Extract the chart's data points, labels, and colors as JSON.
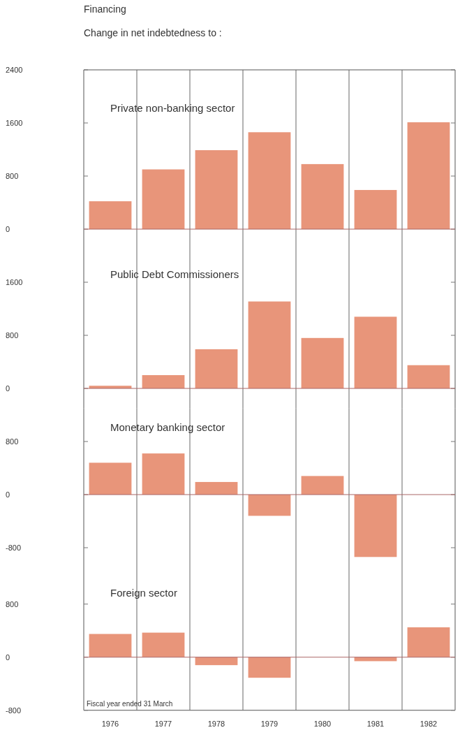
{
  "chart_data": [
    {
      "type": "bar",
      "title": "Financing",
      "subtitle": "Change in net indebtedness to :",
      "annotations": [
        "Private non-banking sector"
      ],
      "categories": [
        "1976",
        "1977",
        "1978",
        "1979",
        "1980",
        "1981",
        "1982"
      ],
      "values": [
        420,
        900,
        1190,
        1460,
        980,
        590,
        1610
      ],
      "color": "#e8957a",
      "ylim": [
        -400,
        2400
      ],
      "yticks": [
        0,
        800,
        1600,
        2400
      ],
      "grid": "x",
      "tick_labels": "y",
      "ref_lines": [
        {
          "axis": "y",
          "value": 0,
          "color": "#aa6666"
        }
      ]
    },
    {
      "type": "bar",
      "annotations": [
        "Public Debt Commissioners"
      ],
      "categories": [
        "1976",
        "1977",
        "1978",
        "1979",
        "1980",
        "1981",
        "1982"
      ],
      "values": [
        40,
        200,
        590,
        1310,
        760,
        1080,
        350
      ],
      "color": "#e8957a",
      "ylim": [
        -300,
        2000
      ],
      "yticks": [
        0,
        800,
        1600
      ],
      "grid": "x",
      "tick_labels": "y",
      "ref_lines": [
        {
          "axis": "y",
          "value": 0,
          "color": "#aa6666"
        }
      ]
    },
    {
      "type": "bar",
      "annotations": [
        "Monetary banking sector"
      ],
      "categories": [
        "1976",
        "1977",
        "1978",
        "1979",
        "1980",
        "1981",
        "1982"
      ],
      "values": [
        480,
        620,
        190,
        -320,
        280,
        -940,
        0
      ],
      "color": "#e8957a",
      "ylim": [
        -1200,
        1300
      ],
      "yticks": [
        -800,
        0,
        800
      ],
      "grid": "x",
      "tick_labels": "y",
      "ref_lines": [
        {
          "axis": "y",
          "value": 0,
          "color": "#aa6666"
        }
      ]
    },
    {
      "type": "bar",
      "annotations": [
        "Foreign sector",
        "Fiscal year ended 31 March"
      ],
      "categories": [
        "1976",
        "1977",
        "1978",
        "1979",
        "1980",
        "1981",
        "1982"
      ],
      "values": [
        350,
        370,
        -120,
        -310,
        0,
        -60,
        450
      ],
      "color": "#e8957a",
      "ylim": [
        -800,
        1250
      ],
      "yticks": [
        -800,
        0,
        800
      ],
      "grid": "x",
      "ref_lines": [
        {
          "axis": "y",
          "value": 0,
          "color": "#aa6666"
        }
      ]
    }
  ]
}
